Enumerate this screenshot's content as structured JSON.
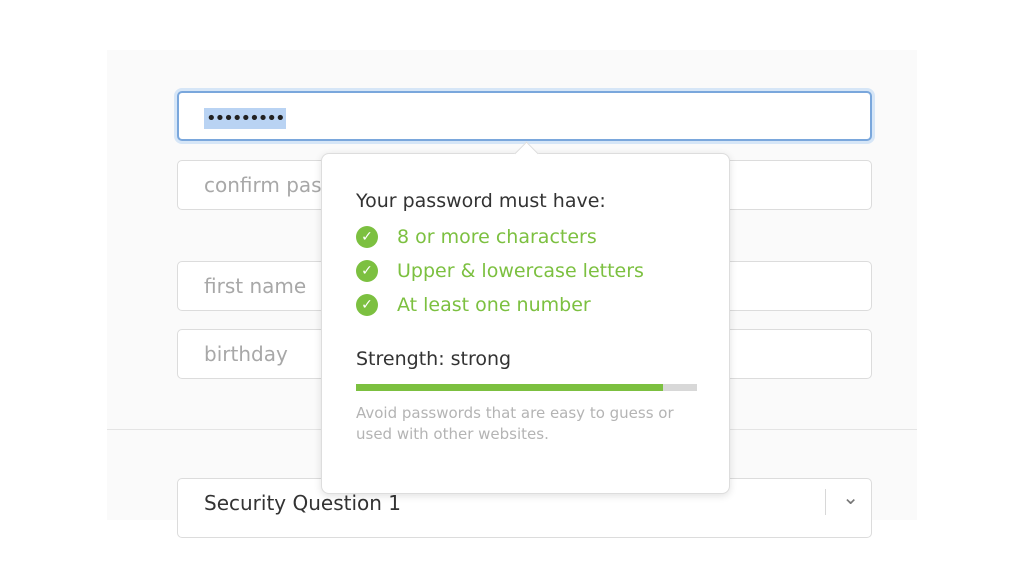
{
  "form": {
    "password_value": "•••••••••",
    "confirm_placeholder": "confirm password",
    "first_name_placeholder": "first name",
    "birthday_placeholder": "birthday",
    "security_question": "Security Question 1"
  },
  "popover": {
    "title": "Your password must have:",
    "requirements": [
      {
        "label": "8 or more characters",
        "met": true
      },
      {
        "label": "Upper & lowercase letters",
        "met": true
      },
      {
        "label": "At least one number",
        "met": true
      }
    ],
    "strength_label": "Strength: strong",
    "strength_percent": 90,
    "hint": "Avoid passwords that are easy to guess or used with other websites."
  },
  "colors": {
    "accent_green": "#7cc040",
    "focus_blue": "#7aa7dc"
  }
}
